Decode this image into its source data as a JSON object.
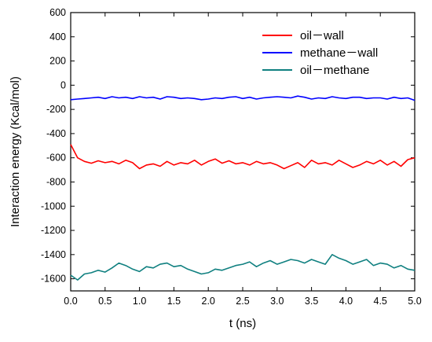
{
  "chart_data": {
    "type": "line",
    "title": "",
    "xlabel": "t (ns)",
    "ylabel": "Interaction energy (Kcal/mol)",
    "xlim": [
      0.0,
      5.0
    ],
    "ylim": [
      -1700,
      600
    ],
    "x_ticks": [
      0.0,
      0.5,
      1.0,
      1.5,
      2.0,
      2.5,
      3.0,
      3.5,
      4.0,
      4.5,
      5.0
    ],
    "x_tick_labels": [
      "0.0",
      "0.5",
      "1.0",
      "1.5",
      "2.0",
      "2.5",
      "3.0",
      "3.5",
      "4.0",
      "4.5",
      "5.0"
    ],
    "y_ticks": [
      600,
      400,
      200,
      0,
      -200,
      -400,
      -600,
      -800,
      -1000,
      -1200,
      -1400,
      -1600
    ],
    "y_tick_labels": [
      "600",
      "400",
      "200",
      "0",
      "-200",
      "-400",
      "-600",
      "-800",
      "-1000",
      "-1200",
      "-1400",
      "-1600"
    ],
    "grid": false,
    "legend_position": "top-right",
    "x": [
      0.0,
      0.1,
      0.2,
      0.3,
      0.4,
      0.5,
      0.6,
      0.7,
      0.8,
      0.9,
      1.0,
      1.1,
      1.2,
      1.3,
      1.4,
      1.5,
      1.6,
      1.7,
      1.8,
      1.9,
      2.0,
      2.1,
      2.2,
      2.3,
      2.4,
      2.5,
      2.6,
      2.7,
      2.8,
      2.9,
      3.0,
      3.1,
      3.2,
      3.3,
      3.4,
      3.5,
      3.6,
      3.7,
      3.8,
      3.9,
      4.0,
      4.1,
      4.2,
      4.3,
      4.4,
      4.5,
      4.6,
      4.7,
      4.8,
      4.9,
      5.0
    ],
    "series": [
      {
        "name": "oil－wall",
        "color": "#ff0000",
        "values": [
          -490,
          -600,
          -630,
          -645,
          -625,
          -640,
          -630,
          -650,
          -620,
          -640,
          -690,
          -660,
          -650,
          -670,
          -630,
          -660,
          -640,
          -650,
          -620,
          -660,
          -630,
          -610,
          -645,
          -625,
          -650,
          -640,
          -660,
          -630,
          -650,
          -640,
          -660,
          -690,
          -665,
          -640,
          -680,
          -620,
          -650,
          -640,
          -660,
          -620,
          -650,
          -680,
          -660,
          -630,
          -650,
          -620,
          -660,
          -630,
          -670,
          -615,
          -600
        ]
      },
      {
        "name": "methane－wall",
        "color": "#0000ff",
        "values": [
          -120,
          -115,
          -110,
          -105,
          -100,
          -110,
          -95,
          -105,
          -100,
          -110,
          -95,
          -105,
          -100,
          -115,
          -95,
          -100,
          -110,
          -105,
          -110,
          -120,
          -115,
          -105,
          -110,
          -100,
          -95,
          -110,
          -100,
          -115,
          -105,
          -100,
          -95,
          -100,
          -105,
          -90,
          -100,
          -115,
          -105,
          -110,
          -95,
          -105,
          -110,
          -100,
          -100,
          -110,
          -105,
          -105,
          -115,
          -100,
          -110,
          -105,
          -125
        ]
      },
      {
        "name": "oil－methane",
        "color": "#108080",
        "values": [
          -1570,
          -1610,
          -1560,
          -1550,
          -1530,
          -1545,
          -1510,
          -1470,
          -1490,
          -1520,
          -1540,
          -1500,
          -1510,
          -1480,
          -1470,
          -1500,
          -1490,
          -1520,
          -1540,
          -1560,
          -1550,
          -1520,
          -1530,
          -1510,
          -1490,
          -1480,
          -1460,
          -1500,
          -1470,
          -1450,
          -1480,
          -1460,
          -1440,
          -1450,
          -1470,
          -1440,
          -1460,
          -1480,
          -1400,
          -1430,
          -1450,
          -1480,
          -1460,
          -1440,
          -1490,
          -1470,
          -1480,
          -1510,
          -1490,
          -1520,
          -1530
        ]
      }
    ]
  }
}
